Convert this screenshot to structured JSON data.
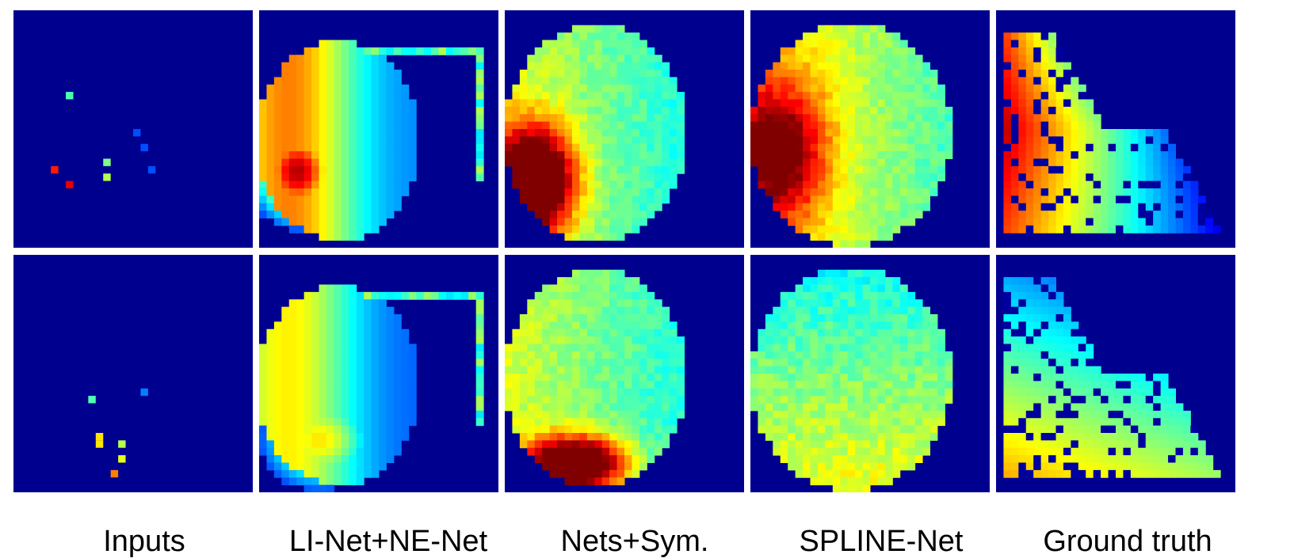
{
  "figure": {
    "columns": [
      {
        "key": "inputs",
        "label": "Inputs"
      },
      {
        "key": "li-ne",
        "label": "LI-Net+NE-Net"
      },
      {
        "key": "nets-sym",
        "label": "Nets+Sym."
      },
      {
        "key": "spline",
        "label": "SPLINE-Net"
      },
      {
        "key": "gt",
        "label": "Ground truth"
      }
    ],
    "rows": 2,
    "colormap": "jet",
    "background_color": "#00008f",
    "divider_color": "#ffffff"
  }
}
